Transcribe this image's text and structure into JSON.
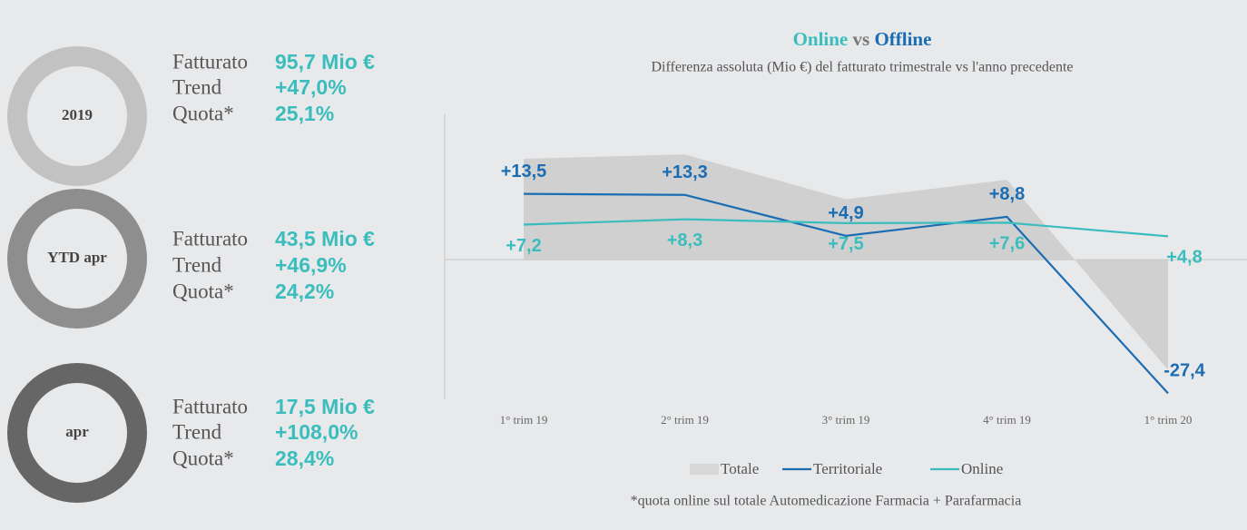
{
  "panels": [
    {
      "label": "2019",
      "color": "#c2c2c2",
      "rows": [
        {
          "label": "Fatturato",
          "value": "95,7 Mio €"
        },
        {
          "label": "Trend",
          "value": "+47,0%"
        },
        {
          "label": "Quota*",
          "value": "25,1%"
        }
      ]
    },
    {
      "label": "YTD apr",
      "color": "#8e8e8e",
      "rows": [
        {
          "label": "Fatturato",
          "value": "43,5 Mio €"
        },
        {
          "label": "Trend",
          "value": "+46,9%"
        },
        {
          "label": "Quota*",
          "value": "24,2%"
        }
      ]
    },
    {
      "label": "apr",
      "color": "#666666",
      "rows": [
        {
          "label": "Fatturato",
          "value": "17,5 Mio €"
        },
        {
          "label": "Trend",
          "value": "+108,0%"
        },
        {
          "label": "Quota*",
          "value": "28,4%"
        }
      ]
    }
  ],
  "chart_data": {
    "type": "line",
    "title": [
      "Online",
      "vs",
      "Offline"
    ],
    "subtitle": "Differenza assoluta (Mio €) del fatturato trimestrale vs l'anno precedente",
    "categories": [
      "1° trim 19",
      "2° trim 19",
      "3° trim 19",
      "4° trim 19",
      "1° trim 20"
    ],
    "ylim": [
      -29,
      30
    ],
    "series": [
      {
        "name": "Totale",
        "color": "#cbcbcb",
        "kind": "area",
        "values": [
          20.7,
          21.6,
          12.4,
          16.4,
          -22.6
        ]
      },
      {
        "name": "Territoriale",
        "color": "#1b6db3",
        "values": [
          13.5,
          13.3,
          4.9,
          8.8,
          -27.4
        ],
        "value_labels": [
          "+13,5",
          "+13,3",
          "+4,9",
          "+8,8",
          "-27,4"
        ]
      },
      {
        "name": "Online",
        "color": "#3bbdbd",
        "values": [
          7.2,
          8.3,
          7.5,
          7.6,
          4.8
        ],
        "value_labels": [
          "+7,2",
          "+8,3",
          "+7,5",
          "+7,6",
          "+4,8"
        ]
      }
    ],
    "footnote": "*quota online sul totale Automedicazione Farmacia + Parafarmacia"
  }
}
